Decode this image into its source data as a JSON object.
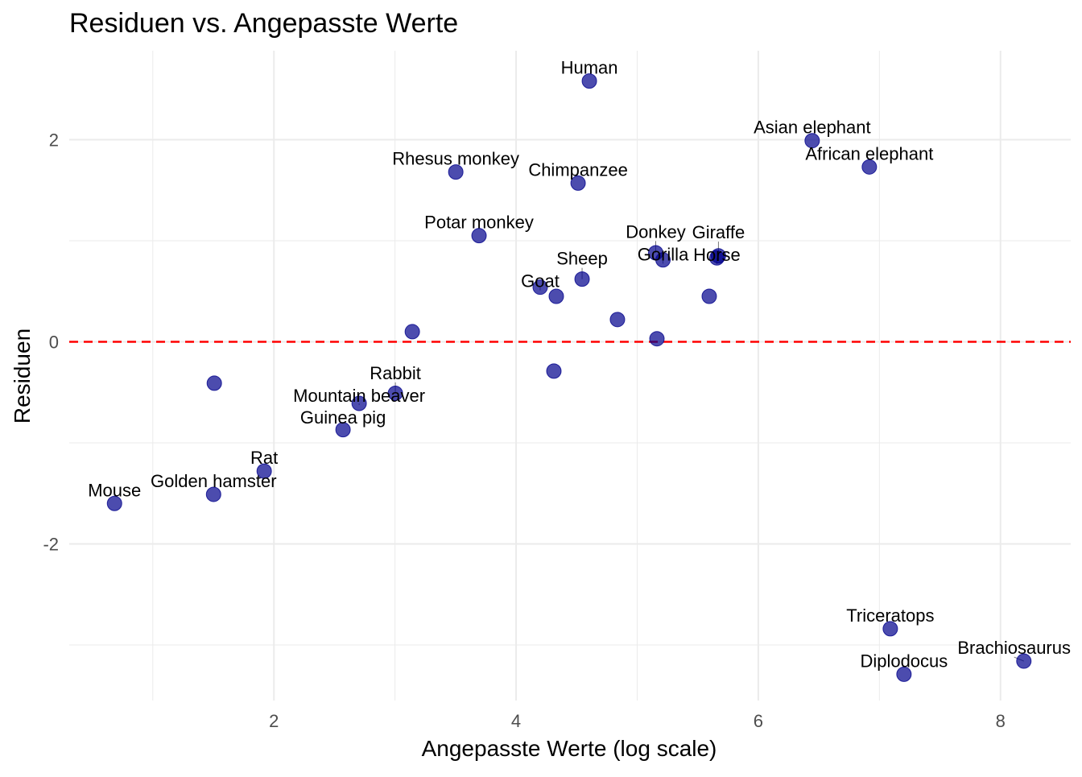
{
  "chart_data": {
    "type": "scatter",
    "title": "Residuen vs. Angepasste Werte",
    "xlabel": "Angepasste Werte (log scale)",
    "ylabel": "Residuen",
    "xlim": [
      0.31,
      8.58
    ],
    "ylim": [
      -3.55,
      2.88
    ],
    "xticks": [
      2,
      4,
      6,
      8
    ],
    "yticks": [
      -2,
      0,
      2
    ],
    "grid": true,
    "reference_line": {
      "y": 0,
      "color": "#FF0000",
      "style": "dashed"
    },
    "point_color": "#00008B",
    "points": [
      {
        "label": "Human",
        "x": 4.605,
        "y": 2.58
      },
      {
        "label": "Asian elephant",
        "x": 6.445,
        "y": 1.99
      },
      {
        "label": "African elephant",
        "x": 6.917,
        "y": 1.73
      },
      {
        "label": "Rhesus monkey",
        "x": 3.502,
        "y": 1.68
      },
      {
        "label": "Chimpanzee",
        "x": 4.512,
        "y": 1.57
      },
      {
        "label": "Potar monkey",
        "x": 3.694,
        "y": 1.05
      },
      {
        "label": "Donkey",
        "x": 5.153,
        "y": 0.88
      },
      {
        "label": "Gorilla",
        "x": 5.213,
        "y": 0.81
      },
      {
        "label": "Giraffe",
        "x": 5.671,
        "y": 0.85
      },
      {
        "label": "Horse",
        "x": 5.658,
        "y": 0.83
      },
      {
        "label": "Sheep",
        "x": 4.545,
        "y": 0.62
      },
      {
        "label": "Goat",
        "x": 4.199,
        "y": 0.54
      },
      {
        "label": "",
        "x": 4.332,
        "y": 0.45
      },
      {
        "label": "",
        "x": 5.595,
        "y": 0.45
      },
      {
        "label": "",
        "x": 4.837,
        "y": 0.22
      },
      {
        "label": "",
        "x": 3.143,
        "y": 0.1
      },
      {
        "label": "",
        "x": 5.163,
        "y": 0.03
      },
      {
        "label": "",
        "x": 4.312,
        "y": -0.29
      },
      {
        "label": "",
        "x": 1.508,
        "y": -0.41
      },
      {
        "label": "Rabbit",
        "x": 3.003,
        "y": -0.51
      },
      {
        "label": "Mountain beaver",
        "x": 2.704,
        "y": -0.61
      },
      {
        "label": "Guinea pig",
        "x": 2.571,
        "y": -0.87
      },
      {
        "label": "Rat",
        "x": 1.92,
        "y": -1.28
      },
      {
        "label": "Golden hamster",
        "x": 1.502,
        "y": -1.51
      },
      {
        "label": "Mouse",
        "x": 0.684,
        "y": -1.6
      },
      {
        "label": "Triceratops",
        "x": 7.09,
        "y": -2.84
      },
      {
        "label": "Brachiosaurus",
        "x": 8.193,
        "y": -3.16
      },
      {
        "label": "Diplodocus",
        "x": 7.203,
        "y": -3.29
      }
    ]
  }
}
